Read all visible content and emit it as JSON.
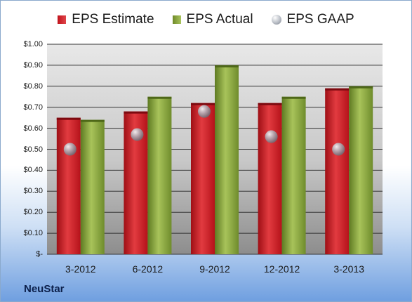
{
  "chart_data": {
    "type": "bar",
    "categories": [
      "3-2012",
      "6-2012",
      "9-2012",
      "12-2012",
      "3-2013"
    ],
    "series": [
      {
        "name": "EPS Estimate",
        "kind": "bar",
        "color": "#c8161e",
        "values": [
          0.65,
          0.68,
          0.72,
          0.72,
          0.79
        ]
      },
      {
        "name": "EPS Actual",
        "kind": "bar",
        "color": "#8aa63c",
        "values": [
          0.64,
          0.75,
          0.9,
          0.75,
          0.8
        ]
      },
      {
        "name": "EPS GAAP",
        "kind": "marker",
        "color": "#a9afb8",
        "values": [
          0.5,
          0.57,
          0.68,
          0.56,
          0.5
        ]
      }
    ],
    "ylim": [
      0,
      1.0
    ],
    "yticks": [
      0,
      0.1,
      0.2,
      0.3,
      0.4,
      0.5,
      0.6,
      0.7,
      0.8,
      0.9,
      1.0
    ],
    "ytick_labels": [
      "$-",
      "$0.10",
      "$0.20",
      "$0.30",
      "$0.40",
      "$0.50",
      "$0.60",
      "$0.70",
      "$0.80",
      "$0.90",
      "$1.00"
    ],
    "grid": true,
    "legend_position": "top"
  },
  "legend": {
    "estimate_label": "EPS Estimate",
    "actual_label": "EPS Actual",
    "gaap_label": "EPS GAAP"
  },
  "company": "NeuStar"
}
